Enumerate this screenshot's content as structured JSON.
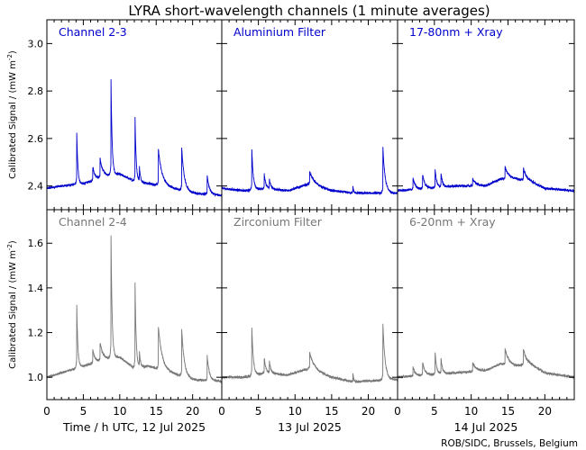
{
  "title": "LYRA short-wavelength channels (1 minute averages)",
  "ylabel": "Calibrated Signal / (mW m",
  "ylabel_sup": "-2",
  "ylabel_close": ")",
  "xlabel_prefix": "Time / h UTC,",
  "credit": "ROB/SIDC, Brussels, Belgium",
  "colors": {
    "top": "#0000cc",
    "bottom": "#777777",
    "axis": "#000000"
  },
  "chart_data": {
    "type": "line",
    "x_unit": "hour UTC",
    "days": [
      "12 Jul 2025",
      "13 Jul 2025",
      "14 Jul 2025"
    ],
    "x_ticks": [
      0,
      5,
      10,
      15,
      20
    ],
    "xlim": [
      0,
      24
    ],
    "rows": [
      {
        "ylim": [
          2.3,
          3.1
        ],
        "y_ticks": [
          2.4,
          2.6,
          2.8,
          3.0
        ],
        "y_tick_labels": [
          "2.4",
          "2.6",
          "2.8",
          "3.0"
        ],
        "color": "#0000cc",
        "panels": [
          {
            "name": "Channel 2-3",
            "baseline": 2.39,
            "drift": [
              [
                0,
                0
              ],
              [
                2,
                0.01
              ],
              [
                5,
                0.02
              ],
              [
                8,
                0.05
              ],
              [
                10,
                0.06
              ],
              [
                12,
                0.03
              ],
              [
                14,
                0.02
              ],
              [
                16,
                0.01
              ],
              [
                20,
                -0.02
              ],
              [
                24,
                -0.03
              ]
            ],
            "flares": [
              [
                4.1,
                0.22,
                0.15
              ],
              [
                6.3,
                0.06,
                0.3
              ],
              [
                7.3,
                0.08,
                0.4
              ],
              [
                8.8,
                0.4,
                0.15
              ],
              [
                12.1,
                0.27,
                0.15
              ],
              [
                12.7,
                0.06,
                0.15
              ],
              [
                15.3,
                0.15,
                0.5
              ],
              [
                18.5,
                0.18,
                0.35
              ],
              [
                22.0,
                0.08,
                0.3
              ]
            ]
          },
          {
            "name": "Aluminium Filter",
            "baseline": 2.37,
            "drift": [
              [
                0,
                0.02
              ],
              [
                3,
                0.01
              ],
              [
                6,
                0.02
              ],
              [
                9,
                0.01
              ],
              [
                12,
                0.04
              ],
              [
                15,
                0.01
              ],
              [
                18,
                0.0
              ],
              [
                24,
                0.0
              ]
            ],
            "flares": [
              [
                4.1,
                0.17,
                0.2
              ],
              [
                5.8,
                0.06,
                0.2
              ],
              [
                6.5,
                0.04,
                0.2
              ],
              [
                12.0,
                0.05,
                0.6
              ],
              [
                17.9,
                0.03,
                0.1
              ],
              [
                22.0,
                0.19,
                0.3
              ]
            ]
          },
          {
            "name": "17-80nm + Xray",
            "baseline": 2.38,
            "drift": [
              [
                0,
                0
              ],
              [
                4,
                0.01
              ],
              [
                8,
                0.02
              ],
              [
                12,
                0.02
              ],
              [
                14,
                0.05
              ],
              [
                16,
                0.05
              ],
              [
                18,
                0.04
              ],
              [
                20,
                0.01
              ],
              [
                24,
                0.0
              ]
            ],
            "flares": [
              [
                2.1,
                0.05,
                0.3
              ],
              [
                3.4,
                0.06,
                0.3
              ],
              [
                5.1,
                0.08,
                0.2
              ],
              [
                5.9,
                0.06,
                0.2
              ],
              [
                10.2,
                0.03,
                0.5
              ],
              [
                14.6,
                0.05,
                0.5
              ],
              [
                17.1,
                0.05,
                0.4
              ]
            ]
          }
        ]
      },
      {
        "ylim": [
          0.9,
          1.75
        ],
        "y_ticks": [
          1.0,
          1.2,
          1.4,
          1.6
        ],
        "y_tick_labels": [
          "1.0",
          "1.2",
          "1.4",
          "1.6"
        ],
        "color": "#777777",
        "panels": [
          {
            "name": "Channel 2-4",
            "baseline": 1.0,
            "drift": [
              [
                0,
                0
              ],
              [
                2,
                0.02
              ],
              [
                5,
                0.05
              ],
              [
                8,
                0.08
              ],
              [
                10,
                0.09
              ],
              [
                12,
                0.04
              ],
              [
                14,
                0.05
              ],
              [
                16,
                0.03
              ],
              [
                20,
                -0.01
              ],
              [
                24,
                -0.02
              ]
            ],
            "flares": [
              [
                4.1,
                0.28,
                0.15
              ],
              [
                6.3,
                0.06,
                0.3
              ],
              [
                7.3,
                0.08,
                0.4
              ],
              [
                8.8,
                0.55,
                0.15
              ],
              [
                12.1,
                0.38,
                0.15
              ],
              [
                12.7,
                0.07,
                0.15
              ],
              [
                15.3,
                0.19,
                0.5
              ],
              [
                18.5,
                0.21,
                0.35
              ],
              [
                22.0,
                0.11,
                0.3
              ]
            ]
          },
          {
            "name": "Zirconium Filter",
            "baseline": 0.98,
            "drift": [
              [
                0,
                0.02
              ],
              [
                3,
                0.02
              ],
              [
                6,
                0.04
              ],
              [
                9,
                0.03
              ],
              [
                12,
                0.06
              ],
              [
                15,
                0.02
              ],
              [
                18,
                0.0
              ],
              [
                24,
                0.01
              ]
            ],
            "flares": [
              [
                4.1,
                0.22,
                0.2
              ],
              [
                5.8,
                0.07,
                0.2
              ],
              [
                6.5,
                0.05,
                0.2
              ],
              [
                12.0,
                0.07,
                0.6
              ],
              [
                17.9,
                0.04,
                0.1
              ],
              [
                22.0,
                0.25,
                0.3
              ]
            ]
          },
          {
            "name": "6-20nm + Xray",
            "baseline": 1.0,
            "drift": [
              [
                0,
                0
              ],
              [
                4,
                0.01
              ],
              [
                8,
                0.02
              ],
              [
                12,
                0.03
              ],
              [
                14,
                0.06
              ],
              [
                16,
                0.05
              ],
              [
                18,
                0.06
              ],
              [
                20,
                0.02
              ],
              [
                24,
                0.0
              ]
            ],
            "flares": [
              [
                2.1,
                0.04,
                0.3
              ],
              [
                3.4,
                0.06,
                0.3
              ],
              [
                5.1,
                0.1,
                0.2
              ],
              [
                5.9,
                0.07,
                0.2
              ],
              [
                10.2,
                0.04,
                0.5
              ],
              [
                14.6,
                0.07,
                0.5
              ],
              [
                17.1,
                0.07,
                0.4
              ]
            ]
          }
        ]
      }
    ]
  }
}
